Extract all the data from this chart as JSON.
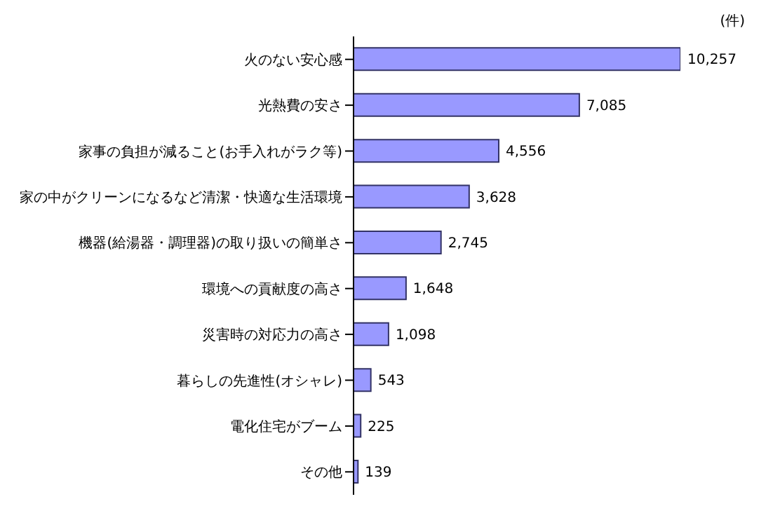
{
  "chart_data": {
    "type": "bar",
    "orientation": "horizontal",
    "xlabel": "(件)",
    "categories": [
      "火のない安心感",
      "光熱費の安さ",
      "家事の負担が減ること(お手入れがラク等)",
      "家の中がクリーンになるなど清潔・快適な生活環境",
      "機器(給湯器・調理器)の取り扱いの簡単さ",
      "環境への貢献度の高さ",
      "災害時の対応力の高さ",
      "暮らしの先進性(オシャレ)",
      "電化住宅がブーム",
      "その他"
    ],
    "values": [
      10257,
      7085,
      4556,
      3628,
      2745,
      1648,
      1098,
      543,
      225,
      139
    ],
    "value_labels": [
      "10,257",
      "7,085",
      "4,556",
      "3,628",
      "2,745",
      "1,648",
      "1,098",
      "543",
      "225",
      "139"
    ],
    "color": "#9999ff"
  }
}
